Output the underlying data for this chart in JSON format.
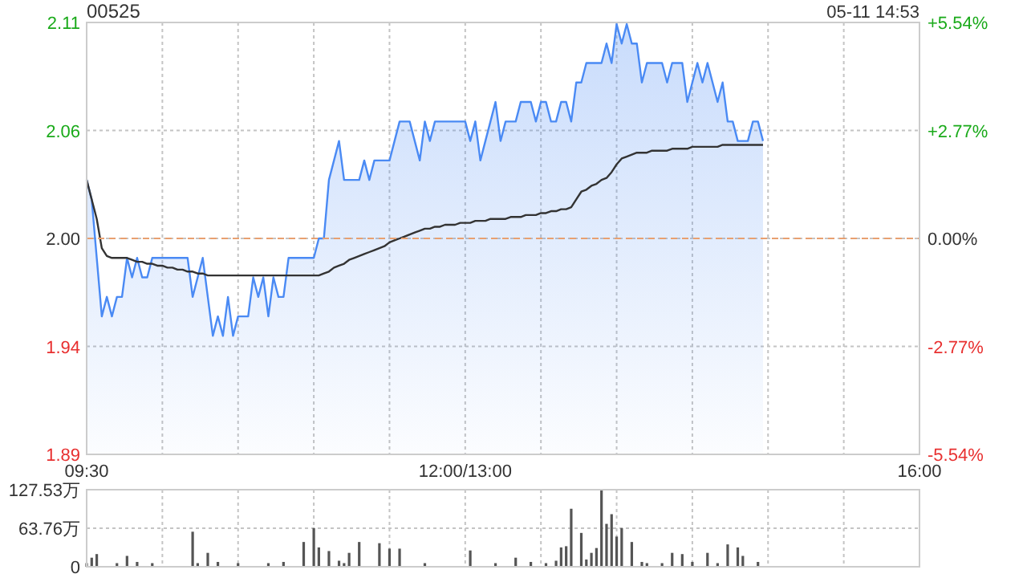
{
  "chart_data": [
    {
      "type": "area",
      "title": "00525",
      "annotations": [
        "05-11 14:53"
      ],
      "categories": [
        "09:30",
        null,
        null,
        null,
        null,
        null,
        null,
        null,
        null,
        null,
        null,
        null,
        null,
        null,
        null,
        null,
        null,
        null,
        null,
        null,
        null,
        null,
        null,
        null,
        null,
        null,
        null,
        null,
        null,
        null,
        null,
        null,
        null,
        null,
        null,
        null,
        null,
        null,
        null,
        null,
        null,
        null,
        null,
        null,
        null,
        null,
        null,
        null,
        null,
        null,
        null,
        null,
        null,
        null,
        null,
        null,
        null,
        null,
        null,
        null,
        null,
        null,
        null,
        null,
        null,
        null,
        null,
        null,
        null,
        null,
        null,
        null,
        null,
        null,
        null,
        "12:00/13:00",
        null,
        null,
        null,
        null,
        null,
        null,
        null,
        null,
        null,
        null,
        null,
        null,
        null,
        null,
        null,
        null,
        null,
        null,
        null,
        null,
        null,
        null,
        null,
        null,
        null,
        null,
        null,
        null,
        null,
        null,
        null,
        null,
        null,
        null,
        null,
        null,
        null,
        null,
        null,
        null,
        null,
        null,
        null,
        null,
        null,
        null,
        null,
        null,
        null,
        null,
        null,
        null,
        null,
        null,
        null,
        null,
        null,
        null,
        null,
        null,
        null,
        null,
        null,
        null,
        null,
        null,
        null,
        null,
        null,
        null,
        null,
        null,
        null,
        null,
        null,
        null,
        null,
        null,
        null,
        null,
        null,
        null,
        null,
        null,
        null,
        null,
        null,
        null,
        null,
        "16:00"
      ],
      "ylim": [
        1.8892,
        2.1108
      ],
      "yticks": [
        {
          "value": 2.1108,
          "label": "2.11"
        },
        {
          "value": 2.0554,
          "label": "2.06"
        },
        {
          "value": 2,
          "label": "2.00"
        },
        {
          "value": 1.9446,
          "label": "1.94"
        },
        {
          "value": 1.8892,
          "label": "1.89"
        }
      ],
      "y2lim": [
        -5.54,
        5.54
      ],
      "y2ticks": [
        {
          "value": 5.54,
          "label": "+5.54%"
        },
        {
          "value": 2.77,
          "label": "+2.77%"
        },
        {
          "value": 0,
          "label": "0.00%"
        },
        {
          "value": -2.77,
          "label": "-2.77%"
        },
        {
          "value": -5.54,
          "label": "-5.54%"
        }
      ],
      "grid": true,
      "ref_lines": [
        {
          "axis": "y",
          "value": 2,
          "color": "#e8a070",
          "line_style": "dashed"
        }
      ],
      "series": [
        {
          "color": "#4a8af4",
          "values": [
            2.03,
            2.02,
            1.99,
            1.96,
            1.97,
            1.96,
            1.97,
            1.97,
            1.99,
            1.98,
            1.99,
            1.98,
            1.98,
            1.99,
            1.99,
            1.99,
            1.99,
            1.99,
            1.99,
            1.99,
            1.99,
            1.97,
            1.98,
            1.99,
            1.97,
            1.95,
            1.96,
            1.95,
            1.97,
            1.95,
            1.96,
            1.96,
            1.96,
            1.98,
            1.97,
            1.98,
            1.96,
            1.98,
            1.97,
            1.97,
            1.99,
            1.99,
            1.99,
            1.99,
            1.99,
            1.99,
            2.0,
            2.0,
            2.03,
            2.04,
            2.05,
            2.03,
            2.03,
            2.03,
            2.03,
            2.04,
            2.03,
            2.04,
            2.04,
            2.04,
            2.04,
            2.05,
            2.06,
            2.06,
            2.06,
            2.05,
            2.04,
            2.06,
            2.05,
            2.06,
            2.06,
            2.06,
            2.06,
            2.06,
            2.06,
            2.06,
            2.05,
            2.06,
            2.04,
            2.05,
            2.06,
            2.07,
            2.05,
            2.06,
            2.06,
            2.06,
            2.07,
            2.07,
            2.07,
            2.06,
            2.07,
            2.07,
            2.06,
            2.06,
            2.07,
            2.07,
            2.06,
            2.08,
            2.08,
            2.09,
            2.09,
            2.09,
            2.09,
            2.1,
            2.09,
            2.11,
            2.1,
            2.11,
            2.1,
            2.1,
            2.08,
            2.09,
            2.09,
            2.09,
            2.09,
            2.08,
            2.09,
            2.09,
            2.09,
            2.07,
            2.08,
            2.09,
            2.08,
            2.09,
            2.08,
            2.07,
            2.08,
            2.06,
            2.06,
            2.05,
            2.05,
            2.05,
            2.06,
            2.06,
            2.05,
            null,
            null,
            null,
            null,
            null,
            null,
            null,
            null,
            null,
            null,
            null,
            null,
            null,
            null,
            null,
            null,
            null,
            null,
            null,
            null,
            null,
            null,
            null,
            null,
            null,
            null,
            null,
            null,
            null,
            null,
            null
          ]
        },
        {
          "type": "line",
          "color": "#333333",
          "values": [
            2.03,
            2.02,
            2.01,
            1.995,
            1.991,
            1.99,
            1.99,
            1.99,
            1.99,
            1.989,
            1.988,
            1.988,
            1.987,
            1.987,
            1.986,
            1.986,
            1.985,
            1.985,
            1.984,
            1.984,
            1.983,
            1.983,
            1.982,
            1.982,
            1.981,
            1.981,
            1.981,
            1.981,
            1.981,
            1.981,
            1.981,
            1.981,
            1.981,
            1.981,
            1.981,
            1.981,
            1.981,
            1.981,
            1.981,
            1.981,
            1.981,
            1.981,
            1.981,
            1.981,
            1.981,
            1.981,
            1.981,
            1.982,
            1.983,
            1.985,
            1.986,
            1.987,
            1.989,
            1.99,
            1.991,
            1.992,
            1.993,
            1.994,
            1.995,
            1.996,
            1.998,
            1.999,
            2.0,
            2.001,
            2.002,
            2.003,
            2.004,
            2.005,
            2.005,
            2.006,
            2.006,
            2.007,
            2.007,
            2.007,
            2.008,
            2.008,
            2.008,
            2.009,
            2.009,
            2.009,
            2.01,
            2.01,
            2.01,
            2.01,
            2.011,
            2.011,
            2.011,
            2.012,
            2.012,
            2.012,
            2.013,
            2.013,
            2.014,
            2.014,
            2.015,
            2.015,
            2.016,
            2.02,
            2.024,
            2.025,
            2.027,
            2.028,
            2.03,
            2.031,
            2.034,
            2.038,
            2.041,
            2.042,
            2.043,
            2.044,
            2.044,
            2.044,
            2.045,
            2.045,
            2.045,
            2.045,
            2.046,
            2.046,
            2.046,
            2.046,
            2.047,
            2.047,
            2.047,
            2.047,
            2.047,
            2.047,
            2.048,
            2.048,
            2.048,
            2.048,
            2.048,
            2.048,
            2.048,
            2.048,
            2.048,
            null,
            null,
            null,
            null,
            null,
            null,
            null,
            null,
            null,
            null,
            null,
            null,
            null,
            null,
            null,
            null,
            null,
            null,
            null,
            null,
            null,
            null,
            null,
            null,
            null,
            null,
            null,
            null,
            null,
            null,
            null
          ]
        }
      ]
    },
    {
      "type": "bar",
      "tick_labels": "y",
      "grid": true,
      "categories": [
        null,
        null,
        null,
        null,
        null,
        null,
        null,
        null,
        null,
        null,
        null,
        null,
        null,
        null,
        null,
        null,
        null,
        null,
        null,
        null,
        null,
        null,
        null,
        null,
        null,
        null,
        null,
        null,
        null,
        null,
        null,
        null,
        null,
        null,
        null,
        null,
        null,
        null,
        null,
        null,
        null,
        null,
        null,
        null,
        null,
        null,
        null,
        null,
        null,
        null,
        null,
        null,
        null,
        null,
        null,
        null,
        null,
        null,
        null,
        null,
        null,
        null,
        null,
        null,
        null,
        null,
        null,
        null,
        null,
        null,
        null,
        null,
        null,
        null,
        null,
        null,
        null,
        null,
        null,
        null,
        null,
        null,
        null,
        null,
        null,
        null,
        null,
        null,
        null,
        null,
        null,
        null,
        null,
        null,
        null,
        null,
        null,
        null,
        null,
        null,
        null,
        null,
        null,
        null,
        null,
        null,
        null,
        null,
        null,
        null,
        null,
        null,
        null,
        null,
        null,
        null,
        null,
        null,
        null,
        null,
        null,
        null,
        null,
        null,
        null,
        null,
        null,
        null,
        null,
        null,
        null,
        null,
        null,
        null,
        null,
        null,
        null,
        null,
        null,
        null,
        null,
        null,
        null,
        null,
        null,
        null,
        null,
        null,
        null,
        null,
        null,
        null,
        null,
        null,
        null,
        null,
        null,
        null,
        null,
        null,
        null,
        null,
        null,
        null,
        null,
        null
      ],
      "ylim": [
        0,
        127.53
      ],
      "yticks": [
        0,
        {
          "value": 63.76,
          "label": "63.76万"
        },
        {
          "value": 127.53,
          "label": "127.53万"
        }
      ],
      "series": [
        {
          "color": "#555555",
          "values": [
            6,
            15,
            21,
            null,
            null,
            null,
            6,
            null,
            18,
            null,
            8,
            null,
            null,
            6,
            null,
            null,
            null,
            null,
            null,
            null,
            null,
            58,
            6,
            null,
            23,
            null,
            8,
            null,
            null,
            null,
            6,
            null,
            null,
            null,
            null,
            null,
            6,
            null,
            null,
            8,
            null,
            null,
            null,
            41,
            null,
            64,
            32,
            null,
            26,
            null,
            10,
            6,
            23,
            null,
            41,
            null,
            null,
            null,
            39,
            null,
            30,
            null,
            30,
            null,
            null,
            null,
            null,
            6,
            null,
            null,
            null,
            null,
            null,
            null,
            null,
            null,
            27,
            null,
            null,
            null,
            null,
            6,
            null,
            null,
            null,
            15,
            null,
            null,
            8,
            null,
            null,
            6,
            null,
            10,
            32,
            34,
            96,
            null,
            56,
            12,
            23,
            31,
            127.5,
            71,
            87,
            50,
            64,
            null,
            41,
            null,
            8,
            6,
            null,
            null,
            6,
            null,
            23,
            null,
            21,
            null,
            8,
            null,
            null,
            23,
            null,
            6,
            null,
            37,
            null,
            32,
            18,
            null,
            null,
            8,
            null,
            null,
            null,
            null,
            null,
            null,
            null,
            null,
            null,
            null,
            null,
            null,
            null,
            null,
            null,
            null,
            null,
            null,
            null,
            null,
            null,
            null,
            null,
            null,
            null,
            null,
            null,
            null,
            null,
            null,
            null,
            null
          ]
        }
      ]
    }
  ]
}
